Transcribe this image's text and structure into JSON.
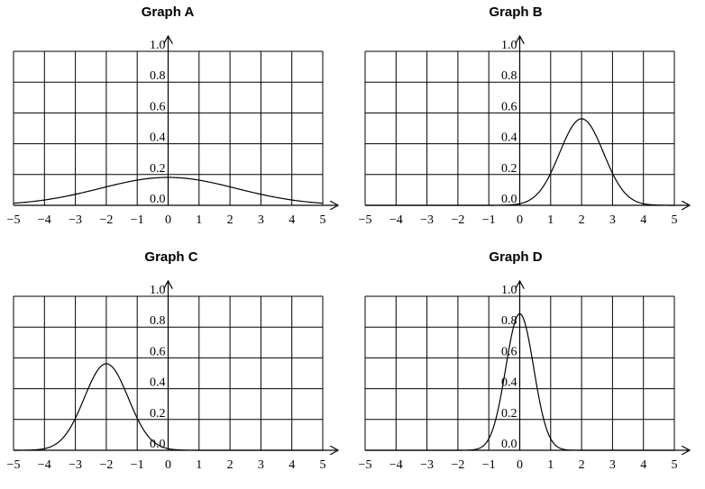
{
  "chart_data": [
    {
      "type": "line",
      "title": "Graph A",
      "x_ticks": [
        "−5",
        "−4",
        "−3",
        "−2",
        "−1",
        "0",
        "1",
        "2",
        "3",
        "4",
        "5"
      ],
      "y_ticks": [
        "0.0",
        "0.2",
        "0.4",
        "0.6",
        "0.8",
        "1.0"
      ],
      "xlim": [
        -5,
        5
      ],
      "ylim": [
        0,
        1
      ],
      "grid": true,
      "curve": "normal density",
      "mean": 0,
      "sd": 2.2,
      "series": [
        {
          "x": [
            -5,
            -4,
            -3,
            -2,
            -1,
            0,
            1,
            2,
            3,
            4,
            5
          ],
          "y": [
            0.018,
            0.035,
            0.071,
            0.124,
            0.163,
            0.181,
            0.163,
            0.124,
            0.071,
            0.035,
            0.018
          ]
        }
      ]
    },
    {
      "type": "line",
      "title": "Graph B",
      "x_ticks": [
        "−5",
        "−4",
        "−3",
        "−2",
        "−1",
        "0",
        "1",
        "2",
        "3",
        "4",
        "5"
      ],
      "y_ticks": [
        "0.0",
        "0.2",
        "0.4",
        "0.6",
        "0.8",
        "1.0"
      ],
      "xlim": [
        -5,
        5
      ],
      "ylim": [
        0,
        1
      ],
      "grid": true,
      "curve": "normal density",
      "mean": 2,
      "sd": 0.71,
      "series": [
        {
          "x": [
            0,
            1,
            2,
            3,
            4,
            5
          ],
          "y": [
            0.01,
            0.21,
            0.56,
            0.21,
            0.01,
            0.0
          ]
        }
      ]
    },
    {
      "type": "line",
      "title": "Graph C",
      "x_ticks": [
        "−5",
        "−4",
        "−3",
        "−2",
        "−1",
        "0",
        "1",
        "2",
        "3",
        "4",
        "5"
      ],
      "y_ticks": [
        "0.0",
        "0.2",
        "0.4",
        "0.6",
        "0.8",
        "1.0"
      ],
      "xlim": [
        -5,
        5
      ],
      "ylim": [
        0,
        1
      ],
      "grid": true,
      "curve": "normal density",
      "mean": -2,
      "sd": 0.71,
      "series": [
        {
          "x": [
            -5,
            -4,
            -3,
            -2,
            -1,
            0
          ],
          "y": [
            0.0,
            0.01,
            0.21,
            0.56,
            0.21,
            0.01
          ]
        }
      ]
    },
    {
      "type": "line",
      "title": "Graph D",
      "x_ticks": [
        "−5",
        "−4",
        "−3",
        "−2",
        "−1",
        "0",
        "1",
        "2",
        "3",
        "4",
        "5"
      ],
      "y_ticks": [
        "0.0",
        "0.2",
        "0.4",
        "0.6",
        "0.8",
        "1.0"
      ],
      "xlim": [
        -5,
        5
      ],
      "ylim": [
        0,
        1
      ],
      "grid": true,
      "curve": "normal density",
      "mean": 0,
      "sd": 0.45,
      "series": [
        {
          "x": [
            -2,
            -1,
            -0.5,
            0,
            0.5,
            1,
            2
          ],
          "y": [
            0.0,
            0.08,
            0.48,
            0.89,
            0.48,
            0.08,
            0.0
          ]
        }
      ]
    }
  ]
}
